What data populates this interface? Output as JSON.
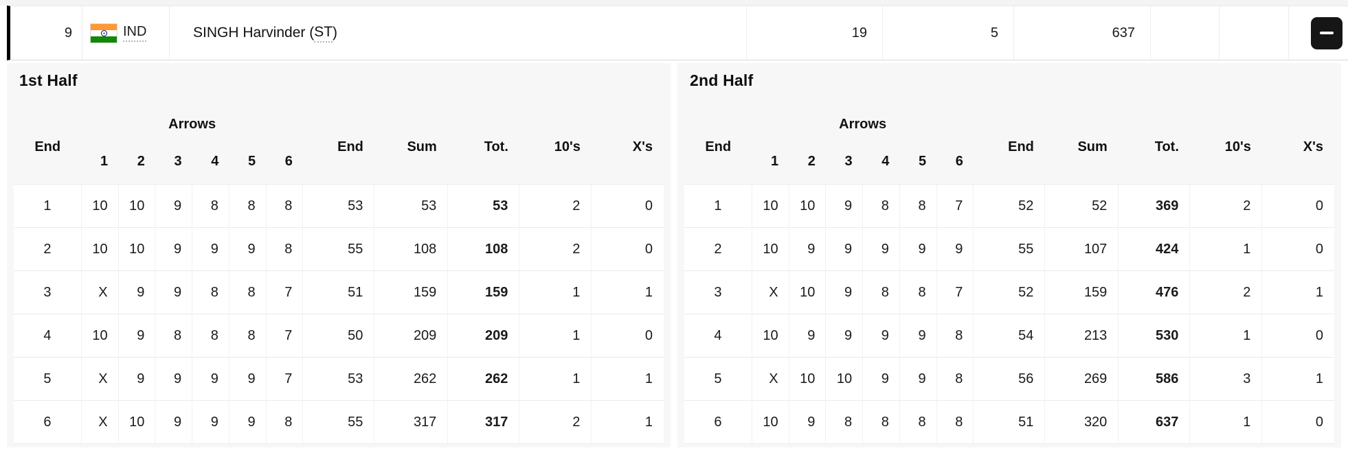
{
  "athlete": {
    "rank": "9",
    "noc": "IND",
    "name_prefix": "SINGH Harvinder (",
    "classification": "ST",
    "name_suffix": ")",
    "tens": "19",
    "xs": "5",
    "total": "637"
  },
  "icons": {
    "flag": "india-flag",
    "remove": "minus"
  },
  "colors": {
    "panel_bg": "#f7f7f7",
    "accent_bar": "#000000",
    "button_bg": "#161616",
    "flag_saffron": "#ff9933",
    "flag_green": "#128807",
    "flag_chakra": "#000088"
  },
  "headers": {
    "end": "End",
    "arrows": "Arrows",
    "arrow_numbers": [
      "1",
      "2",
      "3",
      "4",
      "5",
      "6"
    ],
    "end_total": "End",
    "sum": "Sum",
    "total": "Tot.",
    "tens": "10's",
    "xs": "X's"
  },
  "halves": [
    {
      "title": "1st Half",
      "rows": [
        {
          "end": "1",
          "arrows": [
            "10",
            "10",
            "9",
            "8",
            "8",
            "8"
          ],
          "end_total": "53",
          "sum": "53",
          "total": "53",
          "tens": "2",
          "xs": "0"
        },
        {
          "end": "2",
          "arrows": [
            "10",
            "10",
            "9",
            "9",
            "9",
            "8"
          ],
          "end_total": "55",
          "sum": "108",
          "total": "108",
          "tens": "2",
          "xs": "0"
        },
        {
          "end": "3",
          "arrows": [
            "X",
            "9",
            "9",
            "8",
            "8",
            "7"
          ],
          "end_total": "51",
          "sum": "159",
          "total": "159",
          "tens": "1",
          "xs": "1"
        },
        {
          "end": "4",
          "arrows": [
            "10",
            "9",
            "8",
            "8",
            "8",
            "7"
          ],
          "end_total": "50",
          "sum": "209",
          "total": "209",
          "tens": "1",
          "xs": "0"
        },
        {
          "end": "5",
          "arrows": [
            "X",
            "9",
            "9",
            "9",
            "9",
            "7"
          ],
          "end_total": "53",
          "sum": "262",
          "total": "262",
          "tens": "1",
          "xs": "1"
        },
        {
          "end": "6",
          "arrows": [
            "X",
            "10",
            "9",
            "9",
            "9",
            "8"
          ],
          "end_total": "55",
          "sum": "317",
          "total": "317",
          "tens": "2",
          "xs": "1"
        }
      ]
    },
    {
      "title": "2nd Half",
      "rows": [
        {
          "end": "1",
          "arrows": [
            "10",
            "10",
            "9",
            "8",
            "8",
            "7"
          ],
          "end_total": "52",
          "sum": "52",
          "total": "369",
          "tens": "2",
          "xs": "0"
        },
        {
          "end": "2",
          "arrows": [
            "10",
            "9",
            "9",
            "9",
            "9",
            "9"
          ],
          "end_total": "55",
          "sum": "107",
          "total": "424",
          "tens": "1",
          "xs": "0"
        },
        {
          "end": "3",
          "arrows": [
            "X",
            "10",
            "9",
            "8",
            "8",
            "7"
          ],
          "end_total": "52",
          "sum": "159",
          "total": "476",
          "tens": "2",
          "xs": "1"
        },
        {
          "end": "4",
          "arrows": [
            "10",
            "9",
            "9",
            "9",
            "9",
            "8"
          ],
          "end_total": "54",
          "sum": "213",
          "total": "530",
          "tens": "1",
          "xs": "0"
        },
        {
          "end": "5",
          "arrows": [
            "X",
            "10",
            "10",
            "9",
            "9",
            "8"
          ],
          "end_total": "56",
          "sum": "269",
          "total": "586",
          "tens": "3",
          "xs": "1"
        },
        {
          "end": "6",
          "arrows": [
            "10",
            "9",
            "8",
            "8",
            "8",
            "8"
          ],
          "end_total": "51",
          "sum": "320",
          "total": "637",
          "tens": "1",
          "xs": "0"
        }
      ]
    }
  ]
}
